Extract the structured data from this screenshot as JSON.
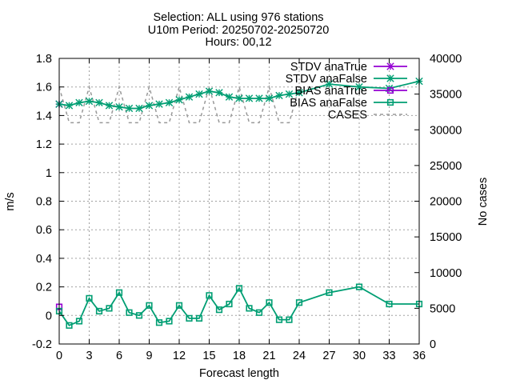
{
  "chart_data": {
    "type": "line",
    "title_lines": [
      "Selection: ALL using   976 stations",
      "U10m   Period: 20250702-20250720",
      "Hours: 00,12"
    ],
    "xlabel": "Forecast length",
    "ylabel": "m/s",
    "y2label": "No cases",
    "xlim": [
      0,
      36
    ],
    "ylim": [
      -0.2,
      1.8
    ],
    "y2lim": [
      0,
      40000
    ],
    "x_ticks": [
      0,
      3,
      6,
      9,
      12,
      15,
      18,
      21,
      24,
      27,
      30,
      33,
      36
    ],
    "y_ticks": [
      -0.2,
      0,
      0.2,
      0.4,
      0.6,
      0.8,
      1,
      1.2,
      1.4,
      1.6,
      1.8
    ],
    "y_tick_labels": [
      "-0.2",
      "0",
      "0.2",
      "0.4",
      "0.6",
      "0.8",
      "1",
      "1.2",
      "1.4",
      "1.6",
      "1.8"
    ],
    "y2_ticks": [
      0,
      5000,
      10000,
      15000,
      20000,
      25000,
      30000,
      35000,
      40000
    ],
    "grid": true,
    "legend_position": "top-right",
    "series": [
      {
        "name": "STDV anaTrue",
        "axis": "y1",
        "color": "#9400d3",
        "marker": "star",
        "dash": "solid",
        "x": [
          0
        ],
        "y": [
          1.48
        ]
      },
      {
        "name": "STDV anaFalse",
        "axis": "y1",
        "color": "#009e73",
        "marker": "star",
        "dash": "solid",
        "x": [
          0,
          1,
          2,
          3,
          4,
          5,
          6,
          7,
          8,
          9,
          10,
          11,
          12,
          13,
          14,
          15,
          16,
          17,
          18,
          19,
          20,
          21,
          22,
          23,
          24,
          27,
          30,
          33,
          36
        ],
        "y": [
          1.48,
          1.47,
          1.49,
          1.5,
          1.49,
          1.47,
          1.46,
          1.45,
          1.45,
          1.47,
          1.48,
          1.49,
          1.51,
          1.53,
          1.55,
          1.57,
          1.56,
          1.53,
          1.52,
          1.52,
          1.52,
          1.52,
          1.54,
          1.55,
          1.56,
          1.62,
          1.6,
          1.59,
          1.64
        ]
      },
      {
        "name": "BIAS anaTrue",
        "axis": "y1",
        "color": "#9400d3",
        "marker": "square",
        "dash": "solid",
        "x": [
          0
        ],
        "y": [
          0.06
        ]
      },
      {
        "name": "BIAS anaFalse",
        "axis": "y1",
        "color": "#009e73",
        "marker": "square",
        "dash": "solid",
        "x": [
          0,
          1,
          2,
          3,
          4,
          5,
          6,
          7,
          8,
          9,
          10,
          11,
          12,
          13,
          14,
          15,
          16,
          17,
          18,
          19,
          20,
          21,
          22,
          23,
          24,
          27,
          30,
          33,
          36
        ],
        "y": [
          0.03,
          -0.07,
          -0.04,
          0.12,
          0.03,
          0.05,
          0.16,
          0.02,
          0.0,
          0.07,
          -0.05,
          -0.04,
          0.07,
          -0.02,
          -0.02,
          0.14,
          0.04,
          0.08,
          0.19,
          0.05,
          0.02,
          0.09,
          -0.03,
          -0.03,
          0.09,
          0.16,
          0.2,
          0.08,
          0.08
        ]
      },
      {
        "name": "CASES",
        "axis": "y2",
        "color": "#999999",
        "marker": "none",
        "dash": "dashed",
        "x": [
          0,
          1,
          2,
          3,
          4,
          5,
          6,
          7,
          8,
          9,
          10,
          11,
          12,
          13,
          14,
          15,
          16,
          17,
          18,
          19,
          20,
          21,
          22,
          23,
          24
        ],
        "y": [
          36000,
          31000,
          31000,
          36000,
          31000,
          31000,
          36000,
          31000,
          31000,
          36000,
          31000,
          31000,
          36000,
          31000,
          31000,
          36000,
          31000,
          31000,
          36000,
          31000,
          31000,
          36000,
          31000,
          31000,
          36000
        ]
      }
    ]
  }
}
